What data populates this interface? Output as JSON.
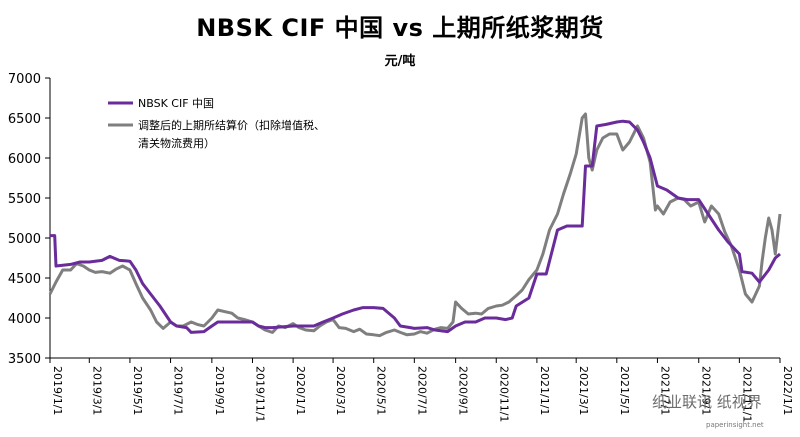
{
  "chart_data": {
    "type": "line",
    "title": "NBSK CIF 中国 vs 上期所纸浆期货",
    "unit_label": "元/吨",
    "ylim": [
      3500,
      7000
    ],
    "yticks": [
      3500,
      4000,
      4500,
      5000,
      5500,
      6000,
      6500,
      7000
    ],
    "xlim": [
      "2019-01-01",
      "2022-01-01"
    ],
    "xticks": [
      "2019/1/1",
      "2019/3/1",
      "2019/5/1",
      "2019/7/1",
      "2019/9/1",
      "2019/11/1",
      "2020/1/1",
      "2020/3/1",
      "2020/5/1",
      "2020/7/1",
      "2020/9/1",
      "2020/11/1",
      "2021/1/1",
      "2021/3/1",
      "2021/5/1",
      "2021/7/1",
      "2021/9/1",
      "2021/11/1",
      "2022/1/1"
    ],
    "grid": false,
    "legend_position": "top-left",
    "series": [
      {
        "name": "NBSK CIF 中国",
        "color": "#6a2c9a",
        "points": [
          [
            "2019-01-01",
            5030
          ],
          [
            "2019-01-08",
            5030
          ],
          [
            "2019-01-10",
            4650
          ],
          [
            "2019-02-01",
            4670
          ],
          [
            "2019-02-15",
            4700
          ],
          [
            "2019-03-01",
            4700
          ],
          [
            "2019-03-20",
            4720
          ],
          [
            "2019-04-01",
            4770
          ],
          [
            "2019-04-15",
            4720
          ],
          [
            "2019-05-01",
            4710
          ],
          [
            "2019-05-10",
            4600
          ],
          [
            "2019-05-20",
            4430
          ],
          [
            "2019-06-01",
            4300
          ],
          [
            "2019-06-15",
            4150
          ],
          [
            "2019-07-01",
            3950
          ],
          [
            "2019-07-10",
            3900
          ],
          [
            "2019-07-25",
            3880
          ],
          [
            "2019-08-01",
            3820
          ],
          [
            "2019-08-20",
            3830
          ],
          [
            "2019-09-01",
            3900
          ],
          [
            "2019-09-10",
            3950
          ],
          [
            "2019-09-25",
            3950
          ],
          [
            "2019-10-01",
            3950
          ],
          [
            "2019-10-15",
            3950
          ],
          [
            "2019-11-01",
            3950
          ],
          [
            "2019-11-10",
            3900
          ],
          [
            "2019-11-20",
            3880
          ],
          [
            "2019-12-01",
            3880
          ],
          [
            "2020-01-01",
            3900
          ],
          [
            "2020-02-01",
            3900
          ],
          [
            "2020-02-15",
            3950
          ],
          [
            "2020-03-01",
            4000
          ],
          [
            "2020-03-15",
            4050
          ],
          [
            "2020-04-01",
            4100
          ],
          [
            "2020-04-15",
            4130
          ],
          [
            "2020-05-01",
            4130
          ],
          [
            "2020-05-15",
            4120
          ],
          [
            "2020-06-01",
            4000
          ],
          [
            "2020-06-10",
            3900
          ],
          [
            "2020-06-25",
            3880
          ],
          [
            "2020-07-01",
            3870
          ],
          [
            "2020-07-20",
            3880
          ],
          [
            "2020-08-01",
            3850
          ],
          [
            "2020-08-20",
            3830
          ],
          [
            "2020-09-01",
            3900
          ],
          [
            "2020-09-15",
            3950
          ],
          [
            "2020-10-01",
            3950
          ],
          [
            "2020-10-15",
            4000
          ],
          [
            "2020-11-01",
            4000
          ],
          [
            "2020-11-15",
            3980
          ],
          [
            "2020-11-25",
            4000
          ],
          [
            "2020-12-01",
            4150
          ],
          [
            "2020-12-20",
            4250
          ],
          [
            "2021-01-01",
            4550
          ],
          [
            "2021-01-15",
            4550
          ],
          [
            "2021-02-01",
            5100
          ],
          [
            "2021-02-15",
            5150
          ],
          [
            "2021-03-01",
            5150
          ],
          [
            "2021-03-10",
            5150
          ],
          [
            "2021-03-15",
            5900
          ],
          [
            "2021-03-25",
            5900
          ],
          [
            "2021-04-01",
            6400
          ],
          [
            "2021-04-15",
            6420
          ],
          [
            "2021-05-01",
            6450
          ],
          [
            "2021-05-10",
            6460
          ],
          [
            "2021-05-20",
            6450
          ],
          [
            "2021-06-01",
            6350
          ],
          [
            "2021-06-10",
            6200
          ],
          [
            "2021-06-20",
            6000
          ],
          [
            "2021-07-01",
            5650
          ],
          [
            "2021-07-15",
            5600
          ],
          [
            "2021-08-01",
            5500
          ],
          [
            "2021-08-15",
            5480
          ],
          [
            "2021-09-01",
            5480
          ],
          [
            "2021-09-15",
            5300
          ],
          [
            "2021-10-01",
            5100
          ],
          [
            "2021-10-15",
            4950
          ],
          [
            "2021-11-01",
            4800
          ],
          [
            "2021-11-05",
            4580
          ],
          [
            "2021-11-20",
            4560
          ],
          [
            "2021-12-01",
            4450
          ],
          [
            "2021-12-15",
            4600
          ],
          [
            "2021-12-25",
            4750
          ],
          [
            "2022-01-01",
            4800
          ]
        ]
      },
      {
        "name": "调整后的上期所结算价（扣除增值税、清关物流费用）",
        "color": "#7f7f7f",
        "points": [
          [
            "2019-01-01",
            4300
          ],
          [
            "2019-01-10",
            4450
          ],
          [
            "2019-01-20",
            4600
          ],
          [
            "2019-02-01",
            4600
          ],
          [
            "2019-02-10",
            4680
          ],
          [
            "2019-02-20",
            4650
          ],
          [
            "2019-03-01",
            4600
          ],
          [
            "2019-03-10",
            4570
          ],
          [
            "2019-03-20",
            4580
          ],
          [
            "2019-04-01",
            4560
          ],
          [
            "2019-04-10",
            4610
          ],
          [
            "2019-04-20",
            4650
          ],
          [
            "2019-05-01",
            4600
          ],
          [
            "2019-05-10",
            4430
          ],
          [
            "2019-05-20",
            4250
          ],
          [
            "2019-06-01",
            4100
          ],
          [
            "2019-06-10",
            3950
          ],
          [
            "2019-06-20",
            3870
          ],
          [
            "2019-07-01",
            3950
          ],
          [
            "2019-07-10",
            3900
          ],
          [
            "2019-07-20",
            3900
          ],
          [
            "2019-08-01",
            3950
          ],
          [
            "2019-08-10",
            3920
          ],
          [
            "2019-08-20",
            3900
          ],
          [
            "2019-09-01",
            4000
          ],
          [
            "2019-09-10",
            4100
          ],
          [
            "2019-09-20",
            4080
          ],
          [
            "2019-10-01",
            4060
          ],
          [
            "2019-10-10",
            4000
          ],
          [
            "2019-10-20",
            3980
          ],
          [
            "2019-11-01",
            3950
          ],
          [
            "2019-11-10",
            3900
          ],
          [
            "2019-11-20",
            3850
          ],
          [
            "2019-12-01",
            3820
          ],
          [
            "2019-12-10",
            3900
          ],
          [
            "2019-12-20",
            3880
          ],
          [
            "2020-01-01",
            3930
          ],
          [
            "2020-01-10",
            3880
          ],
          [
            "2020-01-20",
            3850
          ],
          [
            "2020-02-01",
            3840
          ],
          [
            "2020-02-10",
            3900
          ],
          [
            "2020-02-20",
            3950
          ],
          [
            "2020-03-01",
            3980
          ],
          [
            "2020-03-10",
            3880
          ],
          [
            "2020-03-20",
            3870
          ],
          [
            "2020-04-01",
            3830
          ],
          [
            "2020-04-10",
            3860
          ],
          [
            "2020-04-20",
            3800
          ],
          [
            "2020-05-01",
            3790
          ],
          [
            "2020-05-10",
            3780
          ],
          [
            "2020-05-20",
            3820
          ],
          [
            "2020-06-01",
            3850
          ],
          [
            "2020-06-10",
            3820
          ],
          [
            "2020-06-20",
            3790
          ],
          [
            "2020-07-01",
            3800
          ],
          [
            "2020-07-10",
            3830
          ],
          [
            "2020-07-20",
            3810
          ],
          [
            "2020-08-01",
            3860
          ],
          [
            "2020-08-10",
            3880
          ],
          [
            "2020-08-20",
            3870
          ],
          [
            "2020-08-28",
            3950
          ],
          [
            "2020-09-01",
            4200
          ],
          [
            "2020-09-10",
            4120
          ],
          [
            "2020-09-20",
            4050
          ],
          [
            "2020-10-01",
            4060
          ],
          [
            "2020-10-10",
            4050
          ],
          [
            "2020-10-20",
            4120
          ],
          [
            "2020-11-01",
            4150
          ],
          [
            "2020-11-10",
            4160
          ],
          [
            "2020-11-20",
            4200
          ],
          [
            "2020-12-01",
            4280
          ],
          [
            "2020-12-10",
            4350
          ],
          [
            "2020-12-20",
            4480
          ],
          [
            "2021-01-01",
            4600
          ],
          [
            "2021-01-10",
            4800
          ],
          [
            "2021-01-20",
            5100
          ],
          [
            "2021-02-01",
            5300
          ],
          [
            "2021-02-10",
            5550
          ],
          [
            "2021-02-20",
            5800
          ],
          [
            "2021-03-01",
            6050
          ],
          [
            "2021-03-10",
            6500
          ],
          [
            "2021-03-15",
            6550
          ],
          [
            "2021-03-20",
            6000
          ],
          [
            "2021-03-25",
            5850
          ],
          [
            "2021-04-01",
            6100
          ],
          [
            "2021-04-10",
            6250
          ],
          [
            "2021-04-20",
            6300
          ],
          [
            "2021-05-01",
            6300
          ],
          [
            "2021-05-10",
            6100
          ],
          [
            "2021-05-20",
            6200
          ],
          [
            "2021-06-01",
            6400
          ],
          [
            "2021-06-10",
            6250
          ],
          [
            "2021-06-20",
            5950
          ],
          [
            "2021-06-28",
            5350
          ],
          [
            "2021-07-01",
            5400
          ],
          [
            "2021-07-10",
            5300
          ],
          [
            "2021-07-20",
            5450
          ],
          [
            "2021-08-01",
            5500
          ],
          [
            "2021-08-10",
            5480
          ],
          [
            "2021-08-20",
            5400
          ],
          [
            "2021-09-01",
            5450
          ],
          [
            "2021-09-10",
            5200
          ],
          [
            "2021-09-20",
            5400
          ],
          [
            "2021-10-01",
            5300
          ],
          [
            "2021-10-10",
            5080
          ],
          [
            "2021-10-20",
            4900
          ],
          [
            "2021-11-01",
            4600
          ],
          [
            "2021-11-10",
            4300
          ],
          [
            "2021-11-20",
            4200
          ],
          [
            "2021-12-01",
            4400
          ],
          [
            "2021-12-05",
            4700
          ],
          [
            "2021-12-10",
            5000
          ],
          [
            "2021-12-15",
            5250
          ],
          [
            "2021-12-20",
            5100
          ],
          [
            "2021-12-25",
            4800
          ],
          [
            "2022-01-01",
            5300
          ]
        ]
      }
    ]
  },
  "watermark": {
    "text": "纸业联讯  纸视界",
    "sub": "paperinsight.net"
  }
}
